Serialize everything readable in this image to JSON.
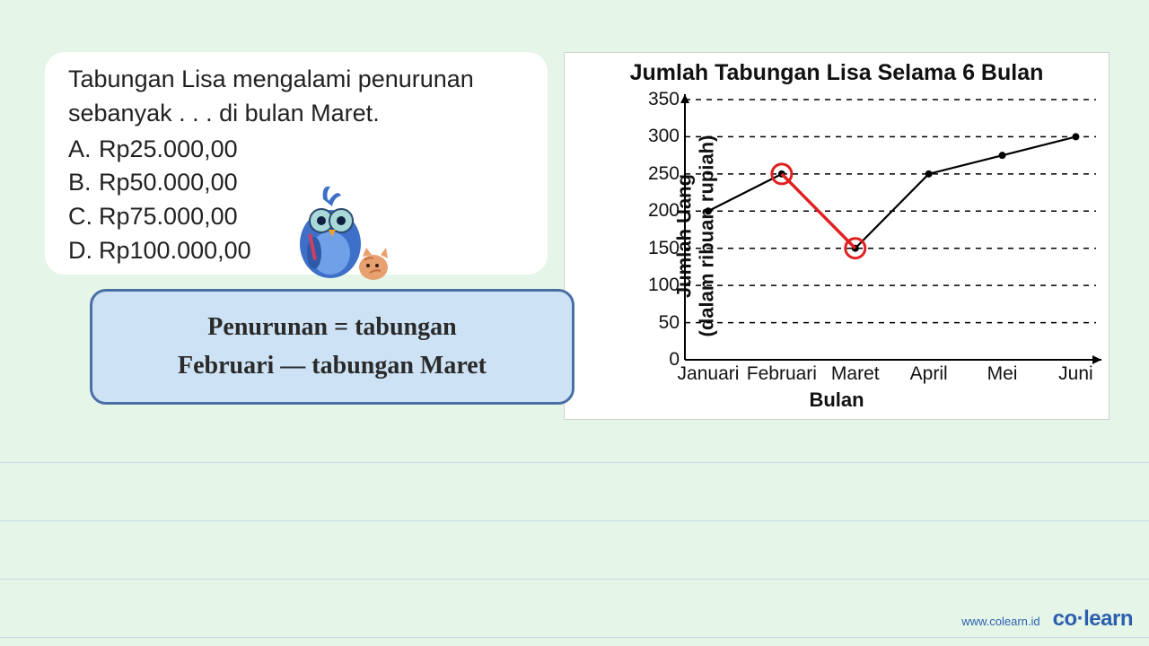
{
  "background_color": "#e5f5e8",
  "page_rule_color": "#c5d9e8",
  "page_rule_y": [
    515,
    580,
    645,
    710
  ],
  "question": {
    "panel_bg": "#ffffff",
    "text_color": "#222222",
    "font_size": 27,
    "prompt": "Tabungan Lisa mengalami penurunan sebanyak . . . di bulan Maret.",
    "options": [
      {
        "letter": "A.",
        "text": "Rp25.000,00"
      },
      {
        "letter": "B.",
        "text": "Rp50.000,00"
      },
      {
        "letter": "C.",
        "text": "Rp75.000,00"
      },
      {
        "letter": "D.",
        "text": "Rp100.000,00"
      }
    ]
  },
  "mascot": {
    "bird_body": "#3e70c9",
    "bird_belly": "#6fa0e8",
    "glasses": "#a8d8d8",
    "beak": "#f0a030",
    "cat_body": "#e8a070",
    "cat_stripes": "#c07040"
  },
  "formula": {
    "bg": "#cde3f5",
    "border": "#4a6fa5",
    "text_color": "#2a2a2a",
    "font_size": 28,
    "line1": "Penurunan = tabungan",
    "line2": "Februari — tabungan Maret"
  },
  "chart": {
    "type": "line",
    "panel_bg": "#ffffff",
    "panel_border": "#d0d0d0",
    "title": "Jumlah Tabungan Lisa Selama 6 Bulan",
    "title_fontsize": 25,
    "ylabel_line1": "Jumlah Uang",
    "ylabel_line2": "(dalam ribuan rupiah)",
    "xlabel": "Bulan",
    "label_fontsize": 22,
    "tick_fontsize": 21,
    "axis_color": "#000000",
    "grid_color": "#000000",
    "grid_dash": "6,6",
    "line_color": "#000000",
    "line_width": 2.2,
    "marker_radius": 4,
    "marker_fill": "#000000",
    "highlight_color": "#e02020",
    "highlight_stroke_width": 3,
    "highlight_marker_radius": 11,
    "ylim": [
      0,
      350
    ],
    "yticks": [
      0,
      50,
      100,
      150,
      200,
      250,
      300,
      350
    ],
    "categories": [
      "Januari",
      "Februari",
      "Maret",
      "April",
      "Mei",
      "Juni"
    ],
    "values": [
      200,
      250,
      150,
      250,
      275,
      300
    ],
    "highlight_indices": [
      1,
      2
    ]
  },
  "footer": {
    "url": "www.colearn.id",
    "brand": "co·learn",
    "color": "#2b5fae"
  }
}
